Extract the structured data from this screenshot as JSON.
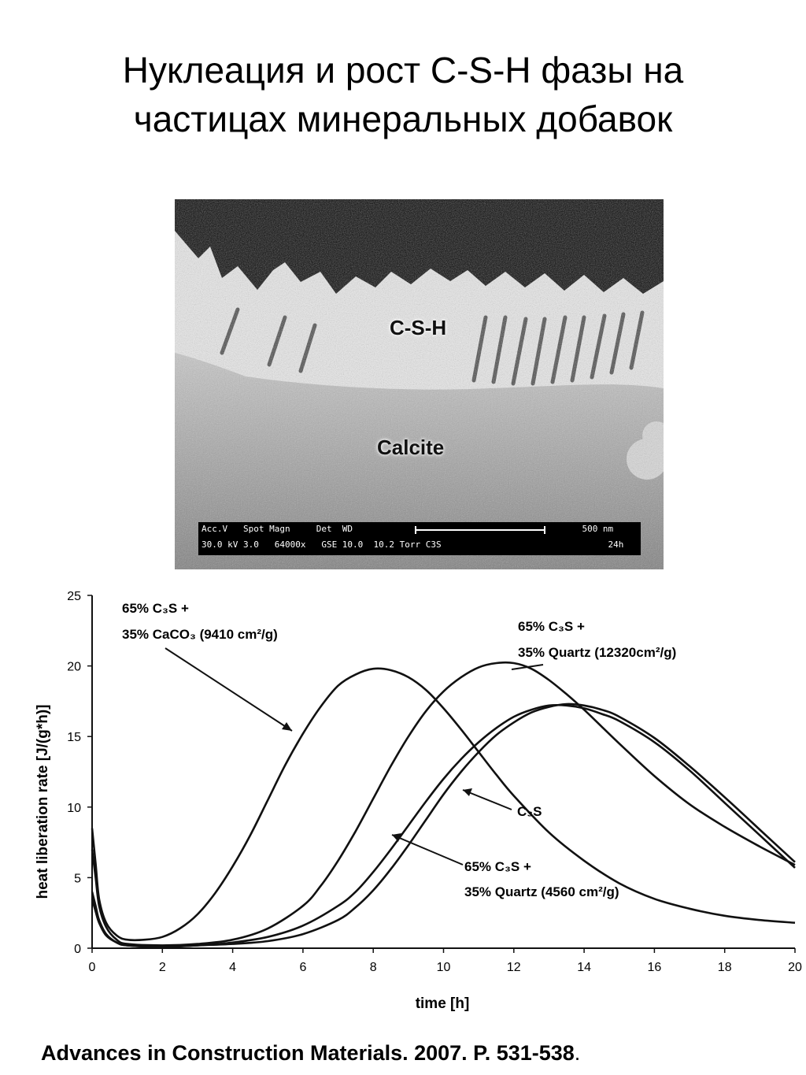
{
  "slide": {
    "title_line1": "Нуклеация и рост C-S-H фазы на",
    "title_line2": "частицах минеральных добавок",
    "citation": "Advances in Construction Materials. 2007. P. 531-538",
    "citation_end": "."
  },
  "micrograph": {
    "label_top": "C-S-H",
    "label_bottom": "Calcite",
    "databar_row1": "Acc.V   Spot Magn     Det  WD                                            500 nm",
    "databar_row2": "30.0 kV 3.0   64000x   GSE 10.0  10.2 Torr C3S                                24h"
  },
  "chart_data": {
    "type": "line",
    "xlabel": "time [h]",
    "ylabel": "heat liberation rate [J/(g*h)]",
    "xlim": [
      0,
      20
    ],
    "ylim": [
      0,
      25
    ],
    "xticks": [
      "0",
      "2",
      "4",
      "6",
      "8",
      "10",
      "12",
      "14",
      "16",
      "18",
      "20"
    ],
    "yticks": [
      "0",
      "5",
      "10",
      "15",
      "20",
      "25"
    ],
    "grid": false,
    "color": "#111111",
    "annotations": [
      {
        "line1": "65% C₃S +",
        "line2": "35% CaCO₃ (9410 cm²/g)"
      },
      {
        "line1": "65% C₃S +",
        "line2": "35% Quartz (12320cm²/g)"
      },
      {
        "line1": "C₃S",
        "line2": ""
      },
      {
        "line1": "65% C₃S +",
        "line2": "35% Quartz (4560 cm²/g)"
      }
    ],
    "series": [
      {
        "x": [
          0,
          0.1,
          0.2,
          0.4,
          0.7,
          1,
          1.5,
          2,
          2.5,
          3,
          3.5,
          4,
          4.5,
          5,
          5.5,
          6,
          6.5,
          7,
          7.5,
          8,
          8.5,
          9,
          9.5,
          10,
          10.5,
          11,
          11.5,
          12,
          13,
          14,
          15,
          16,
          17,
          18,
          19,
          20
        ],
        "y": [
          8.5,
          6.0,
          3.5,
          1.8,
          0.9,
          0.6,
          0.6,
          0.8,
          1.4,
          2.4,
          3.9,
          5.8,
          8.0,
          10.5,
          13.0,
          15.2,
          17.1,
          18.6,
          19.4,
          19.8,
          19.7,
          19.2,
          18.3,
          17.0,
          15.5,
          13.9,
          12.3,
          10.8,
          8.2,
          6.2,
          4.6,
          3.5,
          2.8,
          2.3,
          2.0,
          1.8
        ]
      },
      {
        "x": [
          0,
          0.1,
          0.2,
          0.4,
          0.7,
          1,
          2,
          3,
          4,
          5,
          6,
          6.5,
          7,
          7.5,
          8,
          8.5,
          9,
          9.5,
          10,
          10.5,
          11,
          11.5,
          12,
          12.5,
          13,
          13.5,
          14,
          14.5,
          15,
          16,
          17,
          18,
          19,
          20
        ],
        "y": [
          7.0,
          5.0,
          3.0,
          1.5,
          0.6,
          0.3,
          0.2,
          0.3,
          0.6,
          1.4,
          3.0,
          4.4,
          6.2,
          8.3,
          10.6,
          12.9,
          15.0,
          16.8,
          18.2,
          19.2,
          19.9,
          20.2,
          20.2,
          19.8,
          19.0,
          18.0,
          16.9,
          15.7,
          14.5,
          12.2,
          10.2,
          8.6,
          7.2,
          5.9
        ]
      },
      {
        "x": [
          0,
          0.1,
          0.2,
          0.4,
          0.7,
          1,
          2,
          3,
          4,
          5,
          6,
          7,
          7.5,
          8,
          8.5,
          9,
          9.5,
          10,
          10.5,
          11,
          11.5,
          12,
          12.5,
          13,
          13.5,
          14,
          14.5,
          15,
          16,
          17,
          18,
          19,
          20
        ],
        "y": [
          4.0,
          3.0,
          2.0,
          1.0,
          0.4,
          0.2,
          0.1,
          0.2,
          0.4,
          0.8,
          1.6,
          3.0,
          4.0,
          5.4,
          7.0,
          8.7,
          10.4,
          12.0,
          13.4,
          14.6,
          15.6,
          16.4,
          16.9,
          17.2,
          17.2,
          17.0,
          16.6,
          16.1,
          14.6,
          12.6,
          10.3,
          8.0,
          5.7
        ]
      },
      {
        "x": [
          0,
          0.1,
          0.2,
          0.4,
          0.7,
          1,
          2,
          3,
          4,
          5,
          6,
          7,
          7.5,
          8,
          8.5,
          9,
          9.5,
          10,
          10.5,
          11,
          11.5,
          12,
          12.5,
          13,
          13.5,
          14,
          14.5,
          15,
          16,
          17,
          18,
          19,
          20
        ],
        "y": [
          3.5,
          2.6,
          1.8,
          0.9,
          0.4,
          0.2,
          0.1,
          0.2,
          0.3,
          0.5,
          1.0,
          2.0,
          2.9,
          4.1,
          5.6,
          7.3,
          9.1,
          10.9,
          12.5,
          13.9,
          15.1,
          16.0,
          16.7,
          17.1,
          17.3,
          17.2,
          16.9,
          16.4,
          14.9,
          12.9,
          10.7,
          8.4,
          6.1
        ]
      }
    ]
  }
}
